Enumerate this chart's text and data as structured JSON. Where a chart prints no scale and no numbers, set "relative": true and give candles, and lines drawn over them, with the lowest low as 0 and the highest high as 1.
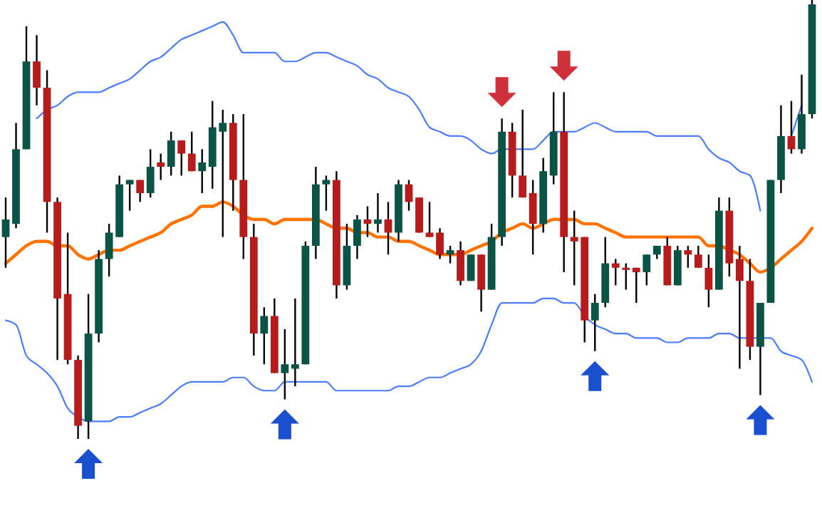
{
  "chart_data": {
    "type": "candlestick",
    "relative": true,
    "categories": [
      null,
      null,
      null,
      null,
      null,
      null,
      null,
      null,
      null,
      null,
      null,
      null,
      null,
      null,
      null,
      null,
      null,
      null,
      null,
      null,
      null,
      null,
      null,
      null,
      null,
      null,
      null,
      null,
      null,
      null,
      null,
      null,
      null,
      null,
      null,
      null,
      null,
      null,
      null,
      null,
      null,
      null,
      null,
      null,
      null,
      null,
      null,
      null,
      null,
      null,
      null,
      null,
      null,
      null,
      null,
      null,
      null,
      null,
      null,
      null,
      null,
      null,
      null,
      null,
      null,
      null,
      null,
      null,
      null,
      null,
      null,
      null,
      null,
      null,
      null,
      null,
      null,
      null,
      null
    ],
    "colors": [
      "#0b5345",
      "#0b5345",
      "#0b5345",
      "#b71c1c",
      "#b71c1c",
      "#b71c1c",
      "#b71c1c",
      "#b71c1c",
      "#0b5345",
      "#0b5345",
      "#0b5345",
      "#0b5345",
      "#0b5345",
      "#b71c1c",
      "#0b5345",
      "#b71c1c",
      "#0b5345",
      "#b71c1c",
      "#b71c1c",
      "#0b5345",
      "#0b5345",
      "#0b5345",
      "#b71c1c",
      "#b71c1c",
      "#b71c1c",
      "#0b5345",
      "#b71c1c",
      "#0b5345",
      "#0b5345",
      "#0b5345",
      "#0b5345",
      "#0b5345",
      "#b71c1c",
      "#0b5345",
      "#0b5345",
      "#b71c1c",
      "#0b5345",
      "#b71c1c",
      "#0b5345",
      "#b71c1c",
      "#b71c1c",
      "#b71c1c",
      "#b71c1c",
      "#0b5345",
      "#b71c1c",
      "#0b5345",
      "#b71c1c",
      "#0b5345",
      "#0b5345",
      "#b71c1c",
      "#b71c1c",
      "#b71c1c",
      "#0b5345",
      "#0b5345",
      "#b71c1c",
      "#b71c1c",
      "#b71c1c",
      "#0b5345",
      "#0b5345",
      "#b71c1c",
      "#b71c1c",
      "#b71c1c",
      "#0b5345",
      "#0b5345",
      "#b71c1c",
      "#0b5345",
      "#b71c1c",
      "#b71c1c",
      "#b71c1c",
      "#0b5345",
      "#b71c1c",
      "#b71c1c",
      "#b71c1c",
      "#0b5345",
      "#0b5345",
      "#0b5345",
      "#b71c1c",
      "#0b5345",
      "#0b5345"
    ],
    "ohlc": [
      [
        0.46,
        0.55,
        0.39,
        0.5
      ],
      [
        0.49,
        0.72,
        0.48,
        0.66
      ],
      [
        0.66,
        0.94,
        0.66,
        0.86
      ],
      [
        0.86,
        0.92,
        0.76,
        0.8
      ],
      [
        0.8,
        0.84,
        0.47,
        0.54
      ],
      [
        0.54,
        0.55,
        0.18,
        0.32
      ],
      [
        0.33,
        0.47,
        0.17,
        0.18
      ],
      [
        0.18,
        0.19,
        0,
        0.03
      ],
      [
        0.04,
        0.33,
        0,
        0.24
      ],
      [
        0.24,
        0.43,
        0.22,
        0.41
      ],
      [
        0.41,
        0.49,
        0.37,
        0.47
      ],
      [
        0.46,
        0.6,
        0.46,
        0.58
      ],
      [
        0.58,
        0.59,
        0.52,
        0.59
      ],
      [
        0.59,
        0.59,
        0.54,
        0.56
      ],
      [
        0.56,
        0.66,
        0.55,
        0.62
      ],
      [
        0.63,
        0.65,
        0.59,
        0.62
      ],
      [
        0.62,
        0.7,
        0.6,
        0.68
      ],
      [
        0.68,
        0.68,
        0.6,
        0.65
      ],
      [
        0.65,
        0.7,
        0.61,
        0.61
      ],
      [
        0.61,
        0.66,
        0.56,
        0.63
      ],
      [
        0.62,
        0.77,
        0.57,
        0.71
      ],
      [
        0.7,
        0.75,
        0.46,
        0.72
      ],
      [
        0.72,
        0.74,
        0.52,
        0.59
      ],
      [
        0.59,
        0.74,
        0.41,
        0.46
      ],
      [
        0.46,
        0.49,
        0.19,
        0.24
      ],
      [
        0.24,
        0.3,
        0.17,
        0.28
      ],
      [
        0.28,
        0.32,
        0.15,
        0.15
      ],
      [
        0.15,
        0.25,
        0.09,
        0.17
      ],
      [
        0.16,
        0.32,
        0.12,
        0.17
      ],
      [
        0.17,
        0.45,
        0.17,
        0.44
      ],
      [
        0.44,
        0.62,
        0.41,
        0.58
      ],
      [
        0.58,
        0.6,
        0.52,
        0.59
      ],
      [
        0.59,
        0.61,
        0.32,
        0.35
      ],
      [
        0.35,
        0.49,
        0.34,
        0.44
      ],
      [
        0.44,
        0.51,
        0.41,
        0.5
      ],
      [
        0.5,
        0.53,
        0.46,
        0.49
      ],
      [
        0.49,
        0.56,
        0.47,
        0.5
      ],
      [
        0.5,
        0.54,
        0.42,
        0.47
      ],
      [
        0.47,
        0.59,
        0.45,
        0.58
      ],
      [
        0.58,
        0.59,
        0.52,
        0.54
      ],
      [
        0.55,
        0.55,
        0.47,
        0.47
      ],
      [
        0.47,
        0.54,
        0.46,
        0.46
      ],
      [
        0.47,
        0.48,
        0.41,
        0.42
      ],
      [
        0.42,
        0.44,
        0.4,
        0.43
      ],
      [
        0.43,
        0.45,
        0.35,
        0.36
      ],
      [
        0.36,
        0.42,
        0.36,
        0.42
      ],
      [
        0.42,
        0.42,
        0.29,
        0.34
      ],
      [
        0.34,
        0.49,
        0.34,
        0.46
      ],
      [
        0.46,
        0.73,
        0.44,
        0.7
      ],
      [
        0.7,
        0.72,
        0.55,
        0.6
      ],
      [
        0.6,
        0.75,
        0.55,
        0.55
      ],
      [
        0.56,
        0.59,
        0.42,
        0.49
      ],
      [
        0.49,
        0.64,
        0.47,
        0.61
      ],
      [
        0.6,
        0.79,
        0.58,
        0.7
      ],
      [
        0.7,
        0.79,
        0.38,
        0.46
      ],
      [
        0.46,
        0.52,
        0.35,
        0.45
      ],
      [
        0.46,
        0.46,
        0.22,
        0.27
      ],
      [
        0.27,
        0.33,
        0.2,
        0.31
      ],
      [
        0.31,
        0.46,
        0.3,
        0.4
      ],
      [
        0.4,
        0.41,
        0.35,
        0.39
      ],
      [
        0.39,
        0.4,
        0.34,
        0.39
      ],
      [
        0.39,
        0.39,
        0.31,
        0.38
      ],
      [
        0.38,
        0.42,
        0.35,
        0.42
      ],
      [
        0.42,
        0.44,
        0.41,
        0.44
      ],
      [
        0.44,
        0.46,
        0.35,
        0.35
      ],
      [
        0.35,
        0.44,
        0.35,
        0.43
      ],
      [
        0.43,
        0.44,
        0.39,
        0.42
      ],
      [
        0.42,
        0.44,
        0.39,
        0.39
      ],
      [
        0.39,
        0.42,
        0.3,
        0.34
      ],
      [
        0.34,
        0.55,
        0.34,
        0.52
      ],
      [
        0.52,
        0.55,
        0.37,
        0.4
      ],
      [
        0.41,
        0.44,
        0.16,
        0.36
      ],
      [
        0.36,
        0.41,
        0.18,
        0.21
      ],
      [
        0.21,
        0.31,
        0.1,
        0.31
      ],
      [
        0.31,
        0.59,
        0.31,
        0.59
      ],
      [
        0.59,
        0.76,
        0.56,
        0.69
      ],
      [
        0.69,
        0.77,
        0.65,
        0.66
      ],
      [
        0.66,
        0.83,
        0.65,
        0.74
      ],
      [
        0.74,
        1,
        0.73,
        0.99
      ]
    ],
    "series": [
      {
        "type": "line",
        "color": "#4d7cff",
        "values": [
          null,
          null,
          null,
          0.73,
          0.75,
          0.76,
          0.78,
          0.79,
          0.79,
          0.79,
          0.8,
          0.81,
          0.82,
          0.84,
          0.86,
          0.87,
          0.89,
          0.91,
          0.92,
          0.93,
          0.94,
          0.95,
          0.92,
          0.88,
          0.88,
          0.88,
          0.88,
          0.86,
          0.86,
          0.87,
          0.88,
          0.88,
          0.87,
          0.86,
          0.85,
          0.83,
          0.82,
          0.8,
          0.79,
          0.78,
          0.75,
          0.71,
          0.7,
          0.69,
          0.69,
          0.68,
          0.66,
          0.65,
          0.66,
          0.66,
          0.66,
          0.66,
          0.68,
          0.7,
          0.7,
          0.7,
          0.71,
          0.72,
          0.71,
          0.7,
          0.7,
          0.7,
          0.7,
          0.69,
          0.69,
          0.69,
          0.69,
          0.69,
          0.66,
          0.64,
          0.63,
          0.61,
          0.6,
          0.52,
          null,
          null,
          0.69,
          0.76,
          null
        ]
      },
      {
        "type": "line",
        "color": "#ff7300",
        "values": [
          0.4,
          0.42,
          0.44,
          0.45,
          0.45,
          0.44,
          0.44,
          0.42,
          0.41,
          0.42,
          0.43,
          0.43,
          0.44,
          0.45,
          0.46,
          0.47,
          0.49,
          0.5,
          0.51,
          0.53,
          0.53,
          0.54,
          0.53,
          0.51,
          0.5,
          0.5,
          0.49,
          0.5,
          0.5,
          0.5,
          0.5,
          0.49,
          0.48,
          0.48,
          0.47,
          0.47,
          0.46,
          0.46,
          0.45,
          0.45,
          0.44,
          0.43,
          0.42,
          0.42,
          0.42,
          0.43,
          0.44,
          0.45,
          0.47,
          0.48,
          0.49,
          0.48,
          0.49,
          0.5,
          0.5,
          0.5,
          0.49,
          0.49,
          0.48,
          0.47,
          0.46,
          0.46,
          0.46,
          0.46,
          0.46,
          0.46,
          0.46,
          0.46,
          0.44,
          0.44,
          0.43,
          0.42,
          0.4,
          0.38,
          0.39,
          0.41,
          0.43,
          0.45,
          0.48
        ]
      },
      {
        "type": "line",
        "color": "#4d7cff",
        "values": [
          0.27,
          0.26,
          0.19,
          0.17,
          0.15,
          0.12,
          0.07,
          0.05,
          0.04,
          0.04,
          0.04,
          0.05,
          0.05,
          0.06,
          0.07,
          0.08,
          0.1,
          0.12,
          0.13,
          0.13,
          0.13,
          0.13,
          0.14,
          0.14,
          0.12,
          0.11,
          0.11,
          0.13,
          0.13,
          0.13,
          0.13,
          0.13,
          0.11,
          0.11,
          0.11,
          0.11,
          0.11,
          0.11,
          0.12,
          0.12,
          0.13,
          0.14,
          0.14,
          0.15,
          0.16,
          0.17,
          0.2,
          0.26,
          0.31,
          0.31,
          0.31,
          0.31,
          0.32,
          0.32,
          0.31,
          0.31,
          0.28,
          0.26,
          0.25,
          0.24,
          0.24,
          0.23,
          0.23,
          0.23,
          0.22,
          0.22,
          0.23,
          0.23,
          0.23,
          0.24,
          0.24,
          0.23,
          0.23,
          0.23,
          0.23,
          0.2,
          0.19,
          0.18,
          0.13
        ]
      }
    ]
  }
}
